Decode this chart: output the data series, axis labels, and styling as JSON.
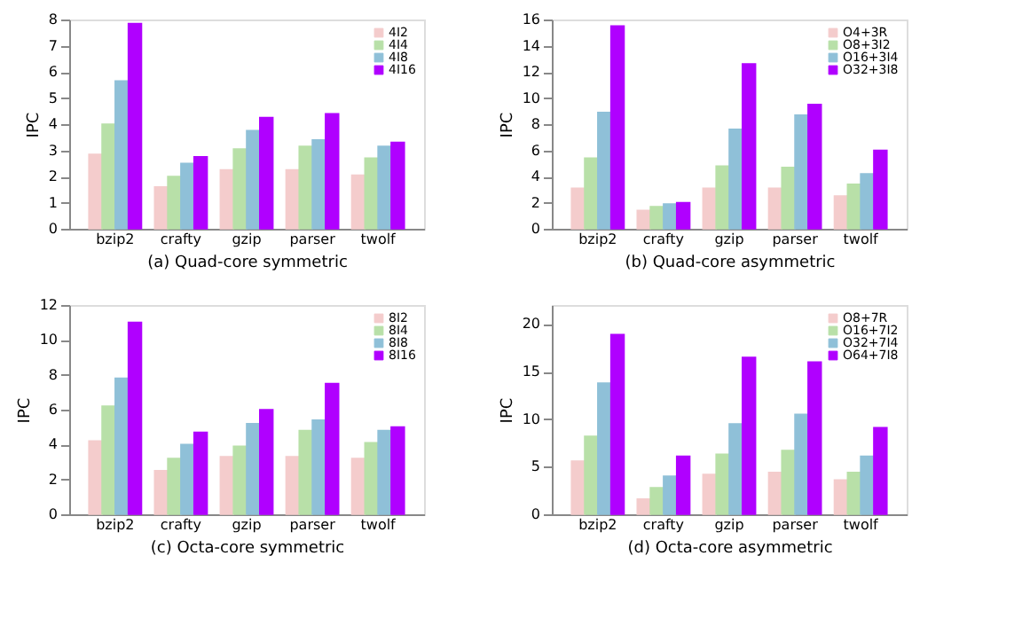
{
  "chart_data": [
    {
      "type": "bar",
      "xlabel": "(a) Quad-core symmetric",
      "ylabel": "IPC",
      "categories": [
        "bzip2",
        "crafty",
        "gzip",
        "parser",
        "twolf"
      ],
      "ylim": [
        0,
        8
      ],
      "yticks": [
        0,
        1,
        2,
        3,
        4,
        5,
        6,
        7,
        8
      ],
      "grid": false,
      "legend": "top right",
      "series": [
        {
          "name": "4I2",
          "color": "#f4cccc",
          "values": [
            2.85,
            1.6,
            2.25,
            2.25,
            2.05
          ]
        },
        {
          "name": "4I4",
          "color": "#b8e0a8",
          "values": [
            4.0,
            2.0,
            3.05,
            3.15,
            2.7
          ]
        },
        {
          "name": "4I8",
          "color": "#8fc0d8",
          "values": [
            5.65,
            2.5,
            3.75,
            3.4,
            3.15
          ]
        },
        {
          "name": "4I16",
          "color": "#b000ff",
          "values": [
            7.85,
            2.75,
            4.25,
            4.4,
            3.3
          ]
        }
      ]
    },
    {
      "type": "bar",
      "xlabel": "(b) Quad-core asymmetric",
      "ylabel": "IPC",
      "categories": [
        "bzip2",
        "crafty",
        "gzip",
        "parser",
        "twolf"
      ],
      "ylim": [
        0,
        16
      ],
      "yticks": [
        0,
        2,
        4,
        6,
        8,
        10,
        12,
        14,
        16
      ],
      "grid": false,
      "legend": "top right",
      "series": [
        {
          "name": "O4+3R",
          "color": "#f4cccc",
          "values": [
            3.1,
            1.4,
            3.1,
            3.1,
            2.5
          ]
        },
        {
          "name": "O8+3I2",
          "color": "#b8e0a8",
          "values": [
            5.4,
            1.7,
            4.8,
            4.7,
            3.4
          ]
        },
        {
          "name": "O16+3I4",
          "color": "#8fc0d8",
          "values": [
            8.9,
            1.9,
            7.6,
            8.7,
            4.2
          ]
        },
        {
          "name": "O32+3I8",
          "color": "#b000ff",
          "values": [
            15.5,
            2.0,
            12.6,
            9.5,
            6.0
          ]
        }
      ]
    },
    {
      "type": "bar",
      "xlabel": "(c) Octa-core symmetric",
      "ylabel": "IPC",
      "categories": [
        "bzip2",
        "crafty",
        "gzip",
        "parser",
        "twolf"
      ],
      "ylim": [
        0,
        12
      ],
      "yticks": [
        0,
        2,
        4,
        6,
        8,
        10,
        12
      ],
      "grid": false,
      "legend": "top right",
      "series": [
        {
          "name": "8I2",
          "color": "#f4cccc",
          "values": [
            4.2,
            2.5,
            3.3,
            3.3,
            3.2
          ]
        },
        {
          "name": "8I4",
          "color": "#b8e0a8",
          "values": [
            6.2,
            3.2,
            3.9,
            4.8,
            4.1
          ]
        },
        {
          "name": "8I8",
          "color": "#8fc0d8",
          "values": [
            7.8,
            4.0,
            5.2,
            5.4,
            4.8
          ]
        },
        {
          "name": "8I16",
          "color": "#b000ff",
          "values": [
            11.0,
            4.7,
            6.0,
            7.5,
            5.0
          ]
        }
      ]
    },
    {
      "type": "bar",
      "xlabel": "(d) Octa-core asymmetric",
      "ylabel": "IPC",
      "categories": [
        "bzip2",
        "crafty",
        "gzip",
        "parser",
        "twolf"
      ],
      "ylim": [
        0,
        22
      ],
      "yticks": [
        0,
        5,
        10,
        15,
        20
      ],
      "grid": false,
      "legend": "top right",
      "series": [
        {
          "name": "O8+7R",
          "color": "#f4cccc",
          "values": [
            5.6,
            1.6,
            4.2,
            4.4,
            3.6
          ]
        },
        {
          "name": "O16+7I2",
          "color": "#b8e0a8",
          "values": [
            8.2,
            2.8,
            6.3,
            6.7,
            4.4
          ]
        },
        {
          "name": "O32+7I4",
          "color": "#8fc0d8",
          "values": [
            13.8,
            4.0,
            9.5,
            10.5,
            6.1
          ]
        },
        {
          "name": "O64+7I8",
          "color": "#b000ff",
          "values": [
            18.9,
            6.1,
            16.5,
            16.0,
            9.1
          ]
        }
      ]
    }
  ]
}
